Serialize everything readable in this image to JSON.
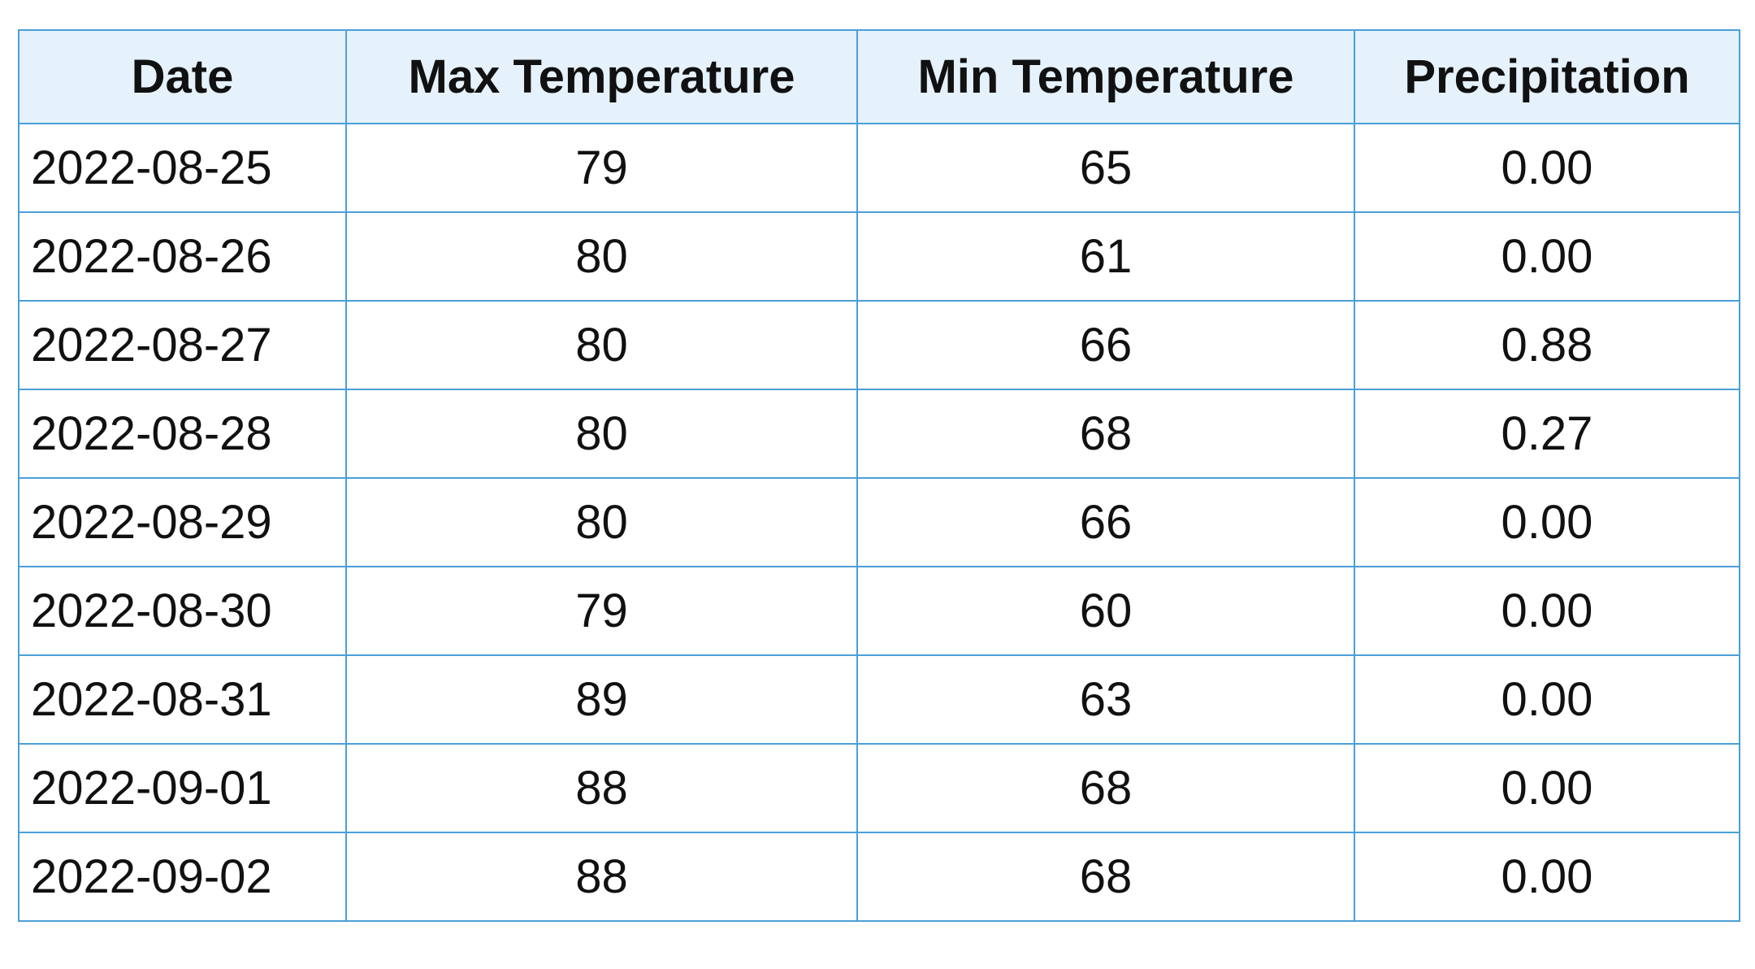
{
  "table": {
    "columns": [
      "Date",
      "Max Temperature",
      "Min Temperature",
      "Precipitation"
    ],
    "rows": [
      [
        "2022-08-25",
        79,
        65,
        "0.00"
      ],
      [
        "2022-08-26",
        80,
        61,
        "0.00"
      ],
      [
        "2022-08-27",
        80,
        66,
        "0.88"
      ],
      [
        "2022-08-28",
        80,
        68,
        "0.27"
      ],
      [
        "2022-08-29",
        80,
        66,
        "0.00"
      ],
      [
        "2022-08-30",
        79,
        60,
        "0.00"
      ],
      [
        "2022-08-31",
        89,
        63,
        "0.00"
      ],
      [
        "2022-09-01",
        88,
        68,
        "0.00"
      ],
      [
        "2022-09-02",
        88,
        68,
        "0.00"
      ]
    ]
  }
}
